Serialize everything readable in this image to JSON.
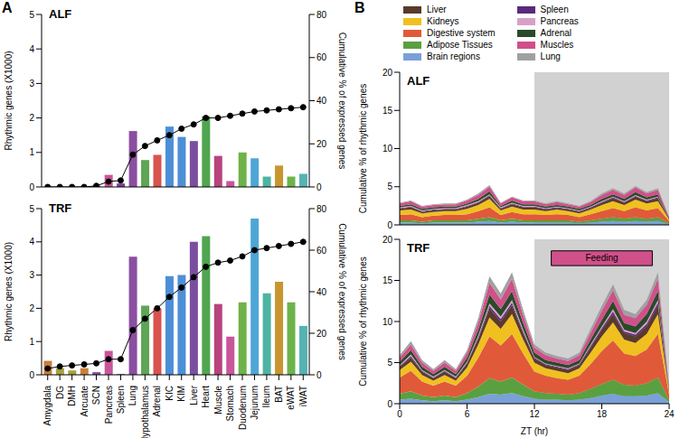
{
  "panel_labels": [
    "A",
    "B"
  ],
  "chart_data": [
    {
      "type": "bar",
      "title": "ALF",
      "tick_labels": "y",
      "grid": false,
      "categories": [
        "Amygdala",
        "DG",
        "DMH",
        "Arcuate",
        "SCN",
        "Pancreas",
        "Spleen",
        "Lung",
        "Hypothalamus",
        "Adrenal",
        "KIC",
        "KIM",
        "Liver",
        "Heart",
        "Muscle",
        "Stomach",
        "Duodenum",
        "Jejunum",
        "Ileum",
        "BAT",
        "eWAT",
        "iWAT"
      ],
      "ylabel": "Rhythmic genes (X1000)",
      "ylim": [
        0,
        5
      ],
      "yticks": [
        0,
        1,
        2,
        3,
        4,
        5
      ],
      "y2label": "Cumulative % of expressed genes",
      "y2lim": [
        0,
        80
      ],
      "y2ticks": [
        0,
        20,
        40,
        60,
        80
      ],
      "series": [
        {
          "type": "bar",
          "values": [
            0.01,
            0.01,
            0.01,
            0.01,
            0.03,
            0.35,
            0.1,
            1.62,
            0.78,
            0.93,
            1.75,
            1.45,
            1.33,
            2.05,
            0.9,
            0.17,
            1.0,
            0.83,
            0.3,
            0.62,
            0.3,
            0.38
          ],
          "colors": [
            "#c87f3a",
            "#a6a23a",
            "#a6a23a",
            "#c87f3a",
            "#8a4fa0",
            "#c9559a",
            "#7b3f98",
            "#8a4fa0",
            "#5ea655",
            "#d9534f",
            "#4d8fd6",
            "#4d8fd6",
            "#7b4fa0",
            "#4fa64f",
            "#b8447e",
            "#c9559a",
            "#6db34a",
            "#4ea6d6",
            "#4fb3a3",
            "#c8962e",
            "#6db34a",
            "#56b3b3"
          ]
        },
        {
          "type": "line",
          "axis": "y2",
          "color": "#000000",
          "marker": "circle",
          "values": [
            0,
            0,
            0,
            0,
            0.5,
            2.5,
            3,
            15,
            19,
            21.6,
            24,
            27,
            29,
            32,
            32,
            33,
            34,
            35,
            35.5,
            36,
            36.5,
            37
          ]
        }
      ]
    },
    {
      "type": "bar",
      "title": "TRF",
      "grid": false,
      "categories": [
        "Amygdala",
        "DG",
        "DMH",
        "Arcuate",
        "SCN",
        "Pancreas",
        "Spleen",
        "Lung",
        "Hypothalamus",
        "Adrenal",
        "KIC",
        "KIM",
        "Liver",
        "Heart",
        "Muscle",
        "Stomach",
        "Duodenum",
        "Jejunum",
        "Ileum",
        "BAT",
        "eWAT",
        "iWAT"
      ],
      "ylabel": "Rhythmic genes (X1000)",
      "ylim": [
        0,
        5
      ],
      "yticks": [
        0,
        1,
        2,
        3,
        4,
        5
      ],
      "y2label": "Cumulative % of expressed genes",
      "y2lim": [
        0,
        80
      ],
      "y2ticks": [
        0,
        20,
        40,
        60,
        80
      ],
      "series": [
        {
          "type": "bar",
          "values": [
            0.42,
            0.2,
            0.13,
            0.2,
            0.08,
            0.72,
            0.02,
            3.55,
            2.08,
            2.0,
            2.97,
            3.0,
            4.0,
            4.17,
            2.13,
            1.15,
            2.18,
            4.7,
            2.45,
            2.8,
            2.18,
            1.47
          ],
          "colors": [
            "#c87f3a",
            "#a6a23a",
            "#a6a23a",
            "#c87f3a",
            "#8a4fa0",
            "#c9559a",
            "#7b3f98",
            "#8a4fa0",
            "#5ea655",
            "#d9534f",
            "#4d8fd6",
            "#4d8fd6",
            "#7b4fa0",
            "#4fa64f",
            "#b8447e",
            "#c9559a",
            "#6db34a",
            "#4ea6d6",
            "#4fb3a3",
            "#c8962e",
            "#6db34a",
            "#56b3b3"
          ]
        },
        {
          "type": "line",
          "axis": "y2",
          "color": "#000000",
          "marker": "circle",
          "values": [
            3,
            4,
            4.5,
            5,
            5.5,
            7.5,
            7.5,
            21.5,
            27,
            32,
            37.5,
            42,
            47,
            52,
            54,
            55,
            57,
            60,
            61,
            62,
            63,
            64
          ]
        }
      ]
    },
    {
      "type": "area",
      "stacked": true,
      "title": "ALF",
      "tick_labels": "y",
      "grid": false,
      "legend": "top",
      "ylabel": "Cumulative % of rhythmic genes",
      "xlim": [
        0,
        24
      ],
      "xticks": [
        0,
        6,
        12,
        18,
        24
      ],
      "ylim": [
        0,
        20
      ],
      "yticks": [
        0,
        5,
        10,
        15,
        20
      ],
      "dark_phase": [
        12,
        24
      ],
      "x": [
        0,
        1,
        2,
        3,
        4,
        5,
        6,
        7,
        8,
        9,
        10,
        11,
        12,
        13,
        14,
        15,
        16,
        17,
        18,
        19,
        20,
        21,
        22,
        23,
        24
      ],
      "series": [
        {
          "name": "Liver",
          "color": "#5a3a2a",
          "values": [
            0.2,
            0.3,
            0.2,
            0.2,
            0.2,
            0.2,
            0.3,
            0.3,
            0.4,
            0.2,
            0.3,
            0.3,
            0.3,
            0.2,
            0.2,
            0.2,
            0.2,
            0.2,
            0.3,
            0.4,
            0.3,
            0.4,
            0.3,
            0.4,
            0.1
          ]
        },
        {
          "name": "Kidneys",
          "color": "#f0c020",
          "values": [
            0.6,
            0.6,
            0.5,
            0.5,
            0.5,
            0.5,
            0.7,
            0.8,
            1.1,
            0.6,
            0.7,
            0.6,
            0.6,
            0.5,
            0.6,
            0.5,
            0.5,
            0.6,
            0.8,
            0.9,
            0.8,
            1.0,
            0.9,
            0.9,
            0.2
          ]
        },
        {
          "name": "Digestive system",
          "color": "#e05a3a",
          "values": [
            0.7,
            0.8,
            0.6,
            0.6,
            0.7,
            0.7,
            0.8,
            1.0,
            1.3,
            0.7,
            0.9,
            0.8,
            0.8,
            0.7,
            0.8,
            0.7,
            0.6,
            0.8,
            1.0,
            1.2,
            1.0,
            1.3,
            1.1,
            1.2,
            0.3
          ]
        },
        {
          "name": "Adipose Tissues",
          "color": "#5aa040",
          "values": [
            0.3,
            0.3,
            0.2,
            0.3,
            0.3,
            0.3,
            0.3,
            0.4,
            0.5,
            0.3,
            0.4,
            0.3,
            0.3,
            0.3,
            0.3,
            0.3,
            0.2,
            0.3,
            0.4,
            0.5,
            0.4,
            0.5,
            0.4,
            0.5,
            0.1
          ]
        },
        {
          "name": "Brain regions",
          "color": "#7aa0d8",
          "values": [
            0.3,
            0.3,
            0.2,
            0.3,
            0.3,
            0.3,
            0.3,
            0.4,
            0.5,
            0.3,
            0.4,
            0.3,
            0.3,
            0.3,
            0.3,
            0.3,
            0.2,
            0.3,
            0.4,
            0.5,
            0.4,
            0.5,
            0.4,
            0.5,
            0.1
          ]
        },
        {
          "name": "Spleen",
          "color": "#5a2a7a",
          "values": [
            0.1,
            0.1,
            0.1,
            0.1,
            0.1,
            0.1,
            0.1,
            0.1,
            0.1,
            0.1,
            0.1,
            0.1,
            0.1,
            0.1,
            0.1,
            0.1,
            0.1,
            0.1,
            0.1,
            0.1,
            0.1,
            0.1,
            0.1,
            0.1,
            0.0
          ]
        },
        {
          "name": "Pancreas",
          "color": "#d8a0c8",
          "values": [
            0.1,
            0.1,
            0.1,
            0.1,
            0.1,
            0.1,
            0.1,
            0.1,
            0.1,
            0.1,
            0.1,
            0.1,
            0.1,
            0.1,
            0.1,
            0.1,
            0.1,
            0.1,
            0.1,
            0.1,
            0.1,
            0.1,
            0.1,
            0.1,
            0.0
          ]
        },
        {
          "name": "Adrenal",
          "color": "#2a4a2a",
          "values": [
            0.2,
            0.2,
            0.2,
            0.2,
            0.2,
            0.2,
            0.2,
            0.3,
            0.4,
            0.2,
            0.3,
            0.2,
            0.2,
            0.2,
            0.2,
            0.2,
            0.2,
            0.2,
            0.3,
            0.3,
            0.3,
            0.4,
            0.3,
            0.3,
            0.1
          ]
        },
        {
          "name": "Muscles",
          "color": "#d0508a",
          "values": [
            0.3,
            0.4,
            0.3,
            0.3,
            0.3,
            0.3,
            0.4,
            0.5,
            0.6,
            0.3,
            0.4,
            0.4,
            0.4,
            0.3,
            0.4,
            0.3,
            0.3,
            0.4,
            0.5,
            0.6,
            0.5,
            0.6,
            0.5,
            0.6,
            0.1
          ]
        },
        {
          "name": "Lung",
          "color": "#a0a0a0",
          "values": [
            0.1,
            0.1,
            0.1,
            0.1,
            0.1,
            0.1,
            0.1,
            0.2,
            0.2,
            0.1,
            0.1,
            0.1,
            0.1,
            0.1,
            0.1,
            0.1,
            0.1,
            0.1,
            0.2,
            0.2,
            0.2,
            0.2,
            0.2,
            0.2,
            0.0
          ]
        }
      ]
    },
    {
      "type": "area",
      "stacked": true,
      "title": "TRF",
      "grid": false,
      "xlabel": "ZT (hr)",
      "ylabel": "Cumulative % of rhythmic genes",
      "xlim": [
        0,
        24
      ],
      "xticks": [
        0,
        6,
        12,
        18,
        24
      ],
      "ylim": [
        0,
        20
      ],
      "yticks": [
        0,
        5,
        10,
        15,
        20
      ],
      "dark_phase": [
        12,
        24
      ],
      "annotations": [
        {
          "text": "Feeding",
          "x": [
            13.5,
            22.5
          ],
          "y": [
            16.8,
            18.6
          ],
          "color": "#d0508a"
        }
      ],
      "x": [
        0,
        1,
        2,
        3,
        4,
        5,
        6,
        7,
        8,
        9,
        10,
        11,
        12,
        13,
        14,
        15,
        16,
        17,
        18,
        19,
        20,
        21,
        22,
        23,
        24
      ],
      "series": [
        {
          "name": "Liver",
          "color": "#5a3a2a",
          "values": [
            0.4,
            0.5,
            0.4,
            0.3,
            0.4,
            0.3,
            0.5,
            0.7,
            1.1,
            0.9,
            1.1,
            0.8,
            0.5,
            0.4,
            0.4,
            0.4,
            0.4,
            0.6,
            0.8,
            1.0,
            0.8,
            0.8,
            0.9,
            1.1,
            0.1
          ]
        },
        {
          "name": "Kidneys",
          "color": "#f0c020",
          "values": [
            0.9,
            1.1,
            0.8,
            0.6,
            0.8,
            0.6,
            1.0,
            1.6,
            2.3,
            2.0,
            2.4,
            1.7,
            1.1,
            0.9,
            0.9,
            0.8,
            0.9,
            1.4,
            1.8,
            2.2,
            1.7,
            1.6,
            1.9,
            2.4,
            0.3
          ]
        },
        {
          "name": "Digestive system",
          "color": "#e05a3a",
          "values": [
            2.0,
            2.5,
            1.7,
            1.4,
            1.7,
            1.4,
            2.1,
            3.5,
            5.1,
            4.4,
            5.3,
            3.8,
            2.4,
            2.1,
            1.9,
            1.8,
            2.1,
            3.0,
            4.0,
            4.8,
            3.8,
            3.6,
            4.1,
            5.3,
            0.7
          ]
        },
        {
          "name": "Adipose Tissues",
          "color": "#5aa040",
          "values": [
            0.7,
            0.9,
            0.6,
            0.5,
            0.6,
            0.5,
            0.8,
            1.3,
            1.9,
            1.6,
            1.9,
            1.4,
            0.9,
            0.8,
            0.7,
            0.7,
            0.8,
            1.1,
            1.4,
            1.7,
            1.4,
            1.3,
            1.5,
            1.9,
            0.2
          ]
        },
        {
          "name": "Brain regions",
          "color": "#7aa0d8",
          "values": [
            0.5,
            0.6,
            0.4,
            0.3,
            0.4,
            0.3,
            0.5,
            0.8,
            1.2,
            1.1,
            1.3,
            0.9,
            0.6,
            0.5,
            0.5,
            0.4,
            0.5,
            0.7,
            1.0,
            1.2,
            0.9,
            0.9,
            1.0,
            1.3,
            0.2
          ]
        },
        {
          "name": "Spleen",
          "color": "#5a2a7a",
          "values": [
            0.1,
            0.2,
            0.1,
            0.1,
            0.1,
            0.1,
            0.1,
            0.2,
            0.3,
            0.3,
            0.3,
            0.2,
            0.1,
            0.1,
            0.1,
            0.1,
            0.1,
            0.2,
            0.2,
            0.3,
            0.2,
            0.2,
            0.3,
            0.3,
            0.0
          ]
        },
        {
          "name": "Pancreas",
          "color": "#d8a0c8",
          "values": [
            0.1,
            0.2,
            0.1,
            0.1,
            0.1,
            0.1,
            0.1,
            0.2,
            0.3,
            0.3,
            0.3,
            0.2,
            0.1,
            0.1,
            0.1,
            0.1,
            0.1,
            0.2,
            0.2,
            0.3,
            0.2,
            0.2,
            0.3,
            0.3,
            0.0
          ]
        },
        {
          "name": "Adrenal",
          "color": "#2a4a2a",
          "values": [
            0.4,
            0.5,
            0.4,
            0.3,
            0.4,
            0.3,
            0.5,
            0.7,
            1.1,
            0.9,
            1.1,
            0.8,
            0.5,
            0.4,
            0.4,
            0.4,
            0.4,
            0.6,
            0.8,
            1.0,
            0.8,
            0.8,
            0.9,
            1.1,
            0.1
          ]
        },
        {
          "name": "Muscles",
          "color": "#d0508a",
          "values": [
            0.5,
            0.7,
            0.5,
            0.4,
            0.5,
            0.4,
            0.6,
            0.9,
            1.4,
            1.2,
            1.5,
            1.0,
            0.6,
            0.6,
            0.5,
            0.5,
            0.6,
            0.8,
            1.1,
            1.3,
            1.0,
            1.0,
            1.1,
            1.5,
            0.2
          ]
        },
        {
          "name": "Lung",
          "color": "#a0a0a0",
          "values": [
            0.3,
            0.4,
            0.3,
            0.2,
            0.3,
            0.2,
            0.3,
            0.5,
            0.8,
            0.7,
            0.8,
            0.6,
            0.4,
            0.3,
            0.3,
            0.3,
            0.3,
            0.5,
            0.6,
            0.7,
            0.6,
            0.5,
            0.6,
            0.8,
            0.1
          ]
        }
      ]
    }
  ]
}
